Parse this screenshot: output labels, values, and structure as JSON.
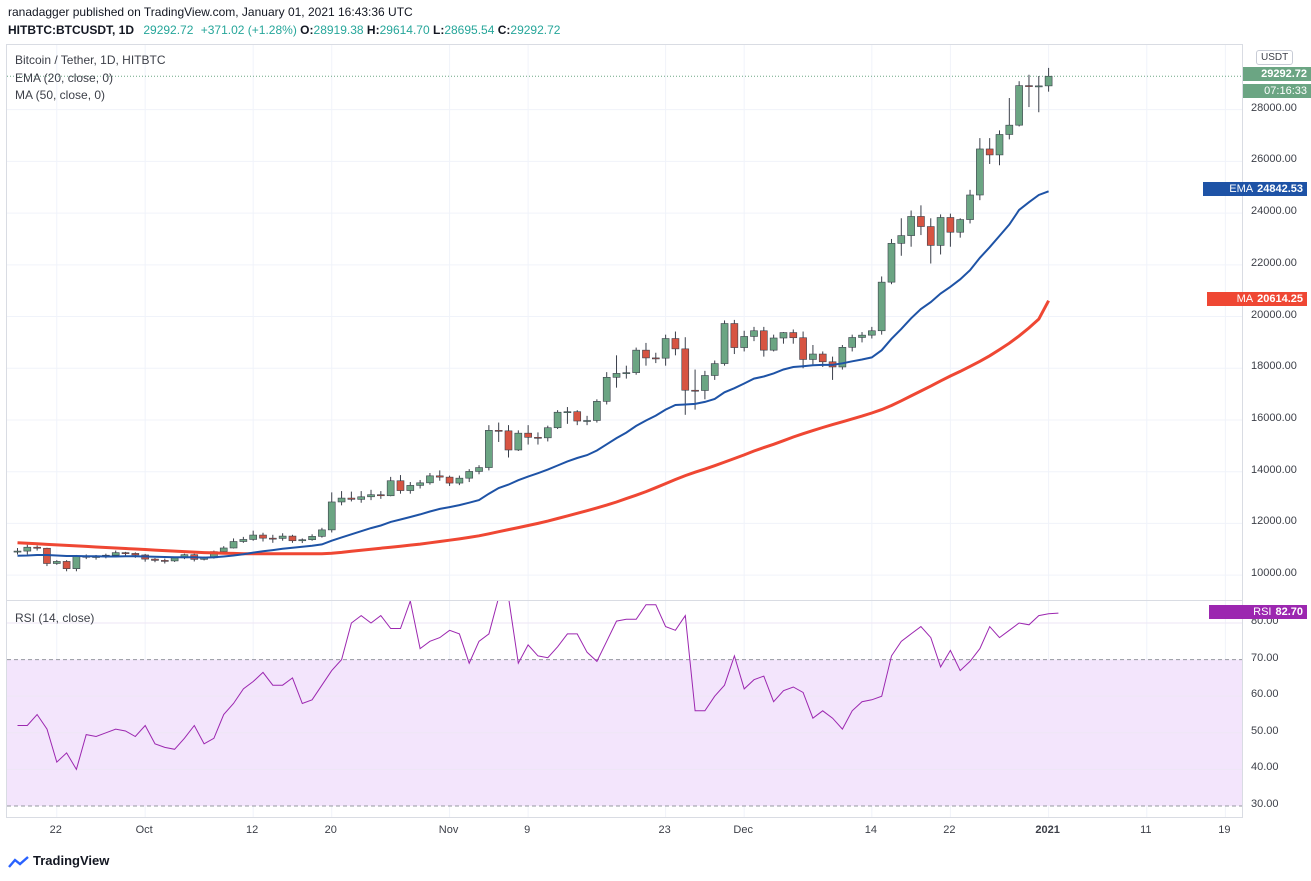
{
  "header": {
    "publisher": "ranadagger published on TradingView.com, January 01, 2021 16:43:36 UTC",
    "symbol": "HITBTC:BTCUSDT, 1D",
    "price": "29292.72",
    "change": "+371.02 (+1.28%)",
    "o_label": "O:",
    "o": "28919.38",
    "h_label": "H:",
    "h": "29614.70",
    "l_label": "L:",
    "l": "28695.54",
    "c_label": "C:",
    "c": "29292.72"
  },
  "legend": {
    "title": "Bitcoin / Tether, 1D, HITBTC",
    "ema": "EMA (20, close, 0)",
    "ma": "MA (50, close, 0)",
    "rsi": "RSI (14, close)"
  },
  "tags": {
    "currency": "USDT",
    "price": "29292.72",
    "countdown": "07:16:33",
    "ema_name": "EMA",
    "ema": "24842.53",
    "ma_name": "MA",
    "ma": "20614.25",
    "rsi_name": "RSI",
    "rsi": "82.70"
  },
  "footer": {
    "brand": "TradingView"
  },
  "colors": {
    "up": "#6ba583",
    "down": "#d75442",
    "ema": "#1e53a6",
    "ma": "#ef4733",
    "rsi": "#9c27b0",
    "rsi_band": "#f3e5fc"
  },
  "chart_data": [
    {
      "type": "candlestick",
      "title": "Bitcoin / Tether, 1D, HITBTC",
      "ylabel": "USDT",
      "ylim": [
        9000,
        30500
      ],
      "yticks": [
        "10000.00",
        "12000.00",
        "14000.00",
        "16000.00",
        "18000.00",
        "20000.00",
        "22000.00",
        "24000.00",
        "26000.00",
        "28000.00"
      ],
      "xticks": [
        "22",
        "Oct",
        "12",
        "20",
        "Nov",
        "9",
        "23",
        "Dec",
        "14",
        "22",
        "2021",
        "11",
        "19"
      ],
      "x": [
        "2020-09-18",
        "2020-09-19",
        "2020-09-20",
        "2020-09-21",
        "2020-09-22",
        "2020-09-23",
        "2020-09-24",
        "2020-09-25",
        "2020-09-26",
        "2020-09-27",
        "2020-09-28",
        "2020-09-29",
        "2020-09-30",
        "2020-10-01",
        "2020-10-02",
        "2020-10-03",
        "2020-10-04",
        "2020-10-05",
        "2020-10-06",
        "2020-10-07",
        "2020-10-08",
        "2020-10-09",
        "2020-10-10",
        "2020-10-11",
        "2020-10-12",
        "2020-10-13",
        "2020-10-14",
        "2020-10-15",
        "2020-10-16",
        "2020-10-17",
        "2020-10-18",
        "2020-10-19",
        "2020-10-20",
        "2020-10-21",
        "2020-10-22",
        "2020-10-23",
        "2020-10-24",
        "2020-10-25",
        "2020-10-26",
        "2020-10-27",
        "2020-10-28",
        "2020-10-29",
        "2020-10-30",
        "2020-10-31",
        "2020-11-01",
        "2020-11-02",
        "2020-11-03",
        "2020-11-04",
        "2020-11-05",
        "2020-11-06",
        "2020-11-07",
        "2020-11-08",
        "2020-11-09",
        "2020-11-10",
        "2020-11-11",
        "2020-11-12",
        "2020-11-13",
        "2020-11-14",
        "2020-11-15",
        "2020-11-16",
        "2020-11-17",
        "2020-11-18",
        "2020-11-19",
        "2020-11-20",
        "2020-11-21",
        "2020-11-22",
        "2020-11-23",
        "2020-11-24",
        "2020-11-25",
        "2020-11-26",
        "2020-11-27",
        "2020-11-28",
        "2020-11-29",
        "2020-11-30",
        "2020-12-01",
        "2020-12-02",
        "2020-12-03",
        "2020-12-04",
        "2020-12-05",
        "2020-12-06",
        "2020-12-07",
        "2020-12-08",
        "2020-12-09",
        "2020-12-10",
        "2020-12-11",
        "2020-12-12",
        "2020-12-13",
        "2020-12-14",
        "2020-12-15",
        "2020-12-16",
        "2020-12-17",
        "2020-12-18",
        "2020-12-19",
        "2020-12-20",
        "2020-12-21",
        "2020-12-22",
        "2020-12-23",
        "2020-12-24",
        "2020-12-25",
        "2020-12-26",
        "2020-12-27",
        "2020-12-28",
        "2020-12-29",
        "2020-12-30",
        "2020-12-31",
        "2021-01-01"
      ],
      "open": [
        10930,
        10930,
        11080,
        11040,
        10450,
        10530,
        10250,
        10730,
        10690,
        10720,
        10770,
        10870,
        10840,
        10780,
        10620,
        10570,
        10550,
        10670,
        10790,
        10610,
        10670,
        10910,
        11050,
        11300,
        11380,
        11550,
        11430,
        11420,
        11510,
        11330,
        11370,
        11500,
        11750,
        12830,
        12980,
        12930,
        13030,
        13110,
        13070,
        13650,
        13270,
        13470,
        13570,
        13840,
        13790,
        13560,
        13750,
        14010,
        14160,
        15600,
        15580,
        14840,
        15490,
        15330,
        15310,
        15700,
        16300,
        16320,
        15960,
        15980,
        16720,
        17650,
        17800,
        17830,
        18700,
        18400,
        18390,
        19150,
        18750,
        17150,
        17140,
        17720,
        18180,
        19730,
        18800,
        19230,
        19450,
        18700,
        19170,
        19380,
        19180,
        18340,
        18550,
        18250,
        18050,
        18810,
        19190,
        19280,
        19450,
        21330,
        22830,
        23130,
        23870,
        23480,
        22750,
        23830,
        23260,
        23750,
        24700,
        26480,
        26250,
        27040,
        27400,
        28930,
        28919,
        28919
      ],
      "close": [
        10930,
        11080,
        11040,
        10450,
        10530,
        10250,
        10730,
        10690,
        10720,
        10770,
        10870,
        10840,
        10780,
        10620,
        10570,
        10550,
        10670,
        10790,
        10610,
        10670,
        10910,
        11050,
        11300,
        11380,
        11550,
        11430,
        11420,
        11510,
        11330,
        11370,
        11500,
        11750,
        12830,
        12980,
        12930,
        13030,
        13110,
        13070,
        13650,
        13270,
        13470,
        13570,
        13840,
        13790,
        13560,
        13750,
        14010,
        14160,
        15600,
        15580,
        14840,
        15490,
        15330,
        15310,
        15700,
        16300,
        16320,
        15960,
        15980,
        16720,
        17650,
        17800,
        17830,
        18700,
        18400,
        18390,
        19150,
        18750,
        17150,
        17140,
        17720,
        18180,
        19730,
        18800,
        19230,
        19450,
        18700,
        19170,
        19380,
        19180,
        18340,
        18550,
        18250,
        18050,
        18810,
        19190,
        19280,
        19450,
        21330,
        22830,
        23130,
        23870,
        23480,
        22750,
        23830,
        23260,
        23750,
        24700,
        26480,
        26250,
        27040,
        27400,
        28930,
        28919,
        28919,
        29292.72
      ],
      "high": [
        11050,
        11180,
        11150,
        11060,
        10580,
        10580,
        10780,
        10800,
        10780,
        10830,
        10950,
        10900,
        10880,
        10820,
        10660,
        10640,
        10720,
        10830,
        10830,
        10720,
        10950,
        11120,
        11420,
        11480,
        11720,
        11640,
        11560,
        11620,
        11560,
        11420,
        11580,
        11830,
        13200,
        13250,
        13230,
        13250,
        13300,
        13250,
        13800,
        13870,
        13600,
        13680,
        13950,
        14050,
        13850,
        13850,
        14100,
        14250,
        15800,
        15900,
        15800,
        15600,
        15800,
        15520,
        15780,
        16380,
        16500,
        16380,
        16160,
        16800,
        17850,
        18500,
        18100,
        18800,
        18980,
        18600,
        19300,
        19420,
        19200,
        17950,
        17900,
        18300,
        19850,
        19870,
        19450,
        19600,
        19600,
        19300,
        19400,
        19500,
        19420,
        18900,
        18650,
        18450,
        18900,
        19300,
        19400,
        19600,
        21550,
        23000,
        23800,
        24100,
        24300,
        23800,
        23950,
        23980,
        23800,
        24900,
        26900,
        26900,
        27200,
        28450,
        29100,
        29350,
        29300,
        29614.7
      ],
      "low": [
        10800,
        10800,
        10950,
        10350,
        10400,
        10150,
        10150,
        10620,
        10600,
        10650,
        10730,
        10760,
        10670,
        10520,
        10500,
        10450,
        10510,
        10620,
        10530,
        10570,
        10640,
        10850,
        11030,
        11250,
        11330,
        11300,
        11250,
        11330,
        11250,
        11240,
        11330,
        11450,
        11650,
        12700,
        12850,
        12800,
        12900,
        12950,
        13050,
        13150,
        13150,
        13350,
        13500,
        13650,
        13450,
        13480,
        13600,
        13900,
        14050,
        15150,
        14550,
        14800,
        15050,
        15050,
        15170,
        15650,
        15850,
        15800,
        15800,
        15900,
        16600,
        17250,
        17600,
        17750,
        18100,
        18200,
        18100,
        18500,
        16200,
        16400,
        16800,
        17550,
        18100,
        18550,
        18650,
        19050,
        18450,
        18650,
        18950,
        18950,
        18000,
        18150,
        18050,
        17550,
        17950,
        18650,
        19000,
        19150,
        19300,
        21250,
        22350,
        22700,
        23150,
        22050,
        22400,
        22700,
        23050,
        23600,
        24500,
        25900,
        25850,
        26850,
        27350,
        28100,
        27900,
        28695.54
      ],
      "ema20": [
        10750,
        10760,
        10780,
        10780,
        10760,
        10740,
        10740,
        10730,
        10730,
        10720,
        10720,
        10730,
        10730,
        10720,
        10710,
        10700,
        10690,
        10690,
        10690,
        10680,
        10690,
        10720,
        10760,
        10810,
        10870,
        10920,
        10970,
        11020,
        11060,
        11100,
        11140,
        11190,
        11330,
        11460,
        11580,
        11700,
        11820,
        11920,
        12060,
        12150,
        12250,
        12350,
        12460,
        12560,
        12630,
        12710,
        12800,
        12900,
        13150,
        13370,
        13500,
        13670,
        13810,
        13940,
        14080,
        14240,
        14400,
        14530,
        14640,
        14820,
        15060,
        15300,
        15510,
        15770,
        15980,
        16170,
        16400,
        16580,
        16600,
        16620,
        16700,
        16810,
        17070,
        17230,
        17410,
        17600,
        17680,
        17800,
        17950,
        18050,
        18080,
        18120,
        18130,
        18130,
        18190,
        18270,
        18340,
        18420,
        18700,
        19140,
        19520,
        19930,
        20290,
        20560,
        20890,
        21150,
        21440,
        21790,
        22270,
        22680,
        23120,
        23560,
        24120,
        24420,
        24700,
        24842.53
      ],
      "ma50": [
        11250,
        11230,
        11210,
        11190,
        11170,
        11150,
        11130,
        11110,
        11090,
        11070,
        11050,
        11030,
        11010,
        10990,
        10970,
        10950,
        10930,
        10910,
        10890,
        10870,
        10860,
        10850,
        10840,
        10830,
        10830,
        10830,
        10830,
        10830,
        10830,
        10830,
        10830,
        10830,
        10850,
        10880,
        10920,
        10960,
        11000,
        11040,
        11080,
        11120,
        11160,
        11200,
        11250,
        11300,
        11350,
        11400,
        11460,
        11520,
        11600,
        11680,
        11760,
        11840,
        11920,
        12000,
        12090,
        12190,
        12290,
        12390,
        12490,
        12600,
        12710,
        12830,
        12960,
        13090,
        13230,
        13380,
        13540,
        13700,
        13850,
        13980,
        14100,
        14230,
        14370,
        14510,
        14650,
        14800,
        14930,
        15060,
        15200,
        15340,
        15470,
        15590,
        15710,
        15820,
        15930,
        16040,
        16150,
        16270,
        16400,
        16560,
        16740,
        16930,
        17120,
        17310,
        17510,
        17700,
        17880,
        18070,
        18270,
        18480,
        18720,
        18970,
        19250,
        19560,
        19900,
        20614.25
      ],
      "rsi": [
        52,
        52,
        55,
        51,
        42,
        44.5,
        40,
        49.5,
        49,
        50,
        51,
        50.5,
        49,
        52,
        47,
        46,
        45.5,
        48.5,
        52,
        47,
        48.5,
        55,
        58,
        62,
        64,
        66.5,
        63,
        63,
        65,
        58,
        59,
        63,
        67,
        70,
        80,
        82,
        80,
        82,
        78.5,
        78.5,
        86,
        73,
        75,
        76,
        78,
        77,
        69,
        75,
        77,
        87,
        87,
        69,
        74,
        71,
        70.5,
        73.5,
        77,
        77,
        72,
        69.5,
        75,
        80.5,
        81,
        81,
        85,
        85,
        79,
        78,
        82,
        56,
        56,
        60,
        63,
        71,
        62,
        64.5,
        65.5,
        58.5,
        61.5,
        62.5,
        61,
        54,
        56,
        54,
        51,
        56,
        58.5,
        59,
        60,
        71,
        75,
        77,
        79,
        76,
        68,
        72.5,
        67,
        69.5,
        73,
        79,
        76,
        78,
        80,
        79.5,
        82,
        82.5,
        82.7
      ],
      "rsi_ylim": [
        27,
        86
      ],
      "rsi_yticks": [
        "30.00",
        "40.00",
        "50.00",
        "60.00",
        "70.00",
        "80.00"
      ],
      "rsi_band": [
        30,
        70
      ]
    }
  ]
}
